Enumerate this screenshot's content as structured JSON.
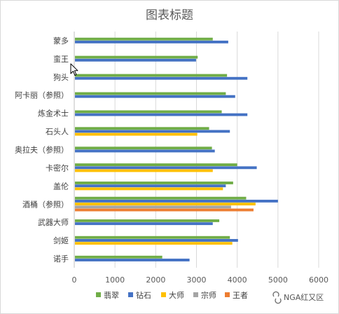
{
  "chart_data": {
    "type": "bar",
    "orientation": "horizontal",
    "title": "图表标题",
    "categories": [
      "蒙多",
      "蛮王",
      "狗头",
      "阿卡丽（参照）",
      "炼金术士",
      "石头人",
      "奥拉夫（参照）",
      "卡密尔",
      "盖伦",
      "酒桶（参照）",
      "武器大师",
      "剑姬",
      "诺手"
    ],
    "series": [
      {
        "name": "翡翠",
        "color": "#70ad47",
        "values": [
          3400,
          3030,
          3750,
          3720,
          3620,
          3310,
          3380,
          4000,
          3900,
          4220,
          3560,
          3820,
          2160
        ]
      },
      {
        "name": "钻石",
        "color": "#4472c4",
        "values": [
          3780,
          2990,
          4250,
          3950,
          4250,
          3820,
          3450,
          4480,
          3720,
          5000,
          3400,
          4020,
          2830
        ]
      },
      {
        "name": "大师",
        "color": "#ffc000",
        "values": [
          null,
          null,
          null,
          null,
          null,
          3020,
          null,
          3400,
          3650,
          4450,
          null,
          3880,
          null
        ]
      },
      {
        "name": "宗师",
        "color": "#a5a5a5",
        "values": [
          null,
          null,
          null,
          null,
          null,
          null,
          null,
          null,
          null,
          3850,
          null,
          null,
          null
        ]
      },
      {
        "name": "王者",
        "color": "#ed7d31",
        "values": [
          null,
          null,
          null,
          null,
          null,
          null,
          null,
          null,
          null,
          4400,
          null,
          null,
          null
        ]
      }
    ],
    "xlim": [
      0,
      6000
    ],
    "xticks": [
      0,
      1000,
      2000,
      3000,
      4000,
      5000,
      6000
    ],
    "grid": "vertical",
    "legend_position": "bottom"
  },
  "watermark": "NGA红又区"
}
